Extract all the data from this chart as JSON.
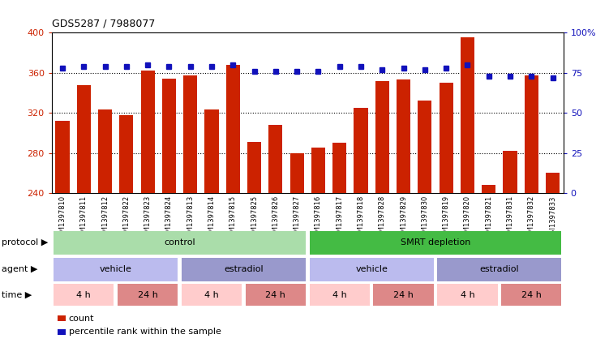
{
  "title": "GDS5287 / 7988077",
  "samples": [
    "GSM1397810",
    "GSM1397811",
    "GSM1397812",
    "GSM1397822",
    "GSM1397823",
    "GSM1397824",
    "GSM1397813",
    "GSM1397814",
    "GSM1397815",
    "GSM1397825",
    "GSM1397826",
    "GSM1397827",
    "GSM1397816",
    "GSM1397817",
    "GSM1397818",
    "GSM1397828",
    "GSM1397829",
    "GSM1397830",
    "GSM1397819",
    "GSM1397820",
    "GSM1397821",
    "GSM1397831",
    "GSM1397832",
    "GSM1397833"
  ],
  "bar_values": [
    312,
    348,
    323,
    318,
    362,
    354,
    357,
    323,
    368,
    291,
    308,
    280,
    285,
    290,
    325,
    352,
    353,
    332,
    350,
    395,
    248,
    282,
    357,
    260
  ],
  "dot_values": [
    78,
    79,
    79,
    79,
    80,
    79,
    79,
    79,
    80,
    76,
    76,
    76,
    76,
    79,
    79,
    77,
    78,
    77,
    78,
    80,
    73,
    73,
    73,
    72
  ],
  "bar_color": "#cc2200",
  "dot_color": "#1111bb",
  "ylim_left": [
    240,
    400
  ],
  "ylim_right": [
    0,
    100
  ],
  "yticks_left": [
    240,
    280,
    320,
    360,
    400
  ],
  "yticks_right": [
    0,
    25,
    50,
    75,
    100
  ],
  "ytick_labels_right": [
    "0",
    "25",
    "50",
    "75",
    "100%"
  ],
  "grid_values": [
    280,
    320,
    360
  ],
  "protocol_spans": [
    {
      "label": "control",
      "start": 0,
      "end": 12,
      "color": "#aaddaa"
    },
    {
      "label": "SMRT depletion",
      "start": 12,
      "end": 24,
      "color": "#44bb44"
    }
  ],
  "agent_spans": [
    {
      "label": "vehicle",
      "start": 0,
      "end": 6,
      "color": "#bbbbee"
    },
    {
      "label": "estradiol",
      "start": 6,
      "end": 12,
      "color": "#9999cc"
    },
    {
      "label": "vehicle",
      "start": 12,
      "end": 18,
      "color": "#bbbbee"
    },
    {
      "label": "estradiol",
      "start": 18,
      "end": 24,
      "color": "#9999cc"
    }
  ],
  "time_spans": [
    {
      "label": "4 h",
      "start": 0,
      "end": 3,
      "color": "#ffcccc"
    },
    {
      "label": "24 h",
      "start": 3,
      "end": 6,
      "color": "#dd8888"
    },
    {
      "label": "4 h",
      "start": 6,
      "end": 9,
      "color": "#ffcccc"
    },
    {
      "label": "24 h",
      "start": 9,
      "end": 12,
      "color": "#dd8888"
    },
    {
      "label": "4 h",
      "start": 12,
      "end": 15,
      "color": "#ffcccc"
    },
    {
      "label": "24 h",
      "start": 15,
      "end": 18,
      "color": "#dd8888"
    },
    {
      "label": "4 h",
      "start": 18,
      "end": 21,
      "color": "#ffcccc"
    },
    {
      "label": "24 h",
      "start": 21,
      "end": 24,
      "color": "#dd8888"
    }
  ],
  "legend_items": [
    {
      "label": "count",
      "color": "#cc2200"
    },
    {
      "label": "percentile rank within the sample",
      "color": "#1111bb"
    }
  ],
  "bg_color": "#ffffff",
  "plot_bg_color": "#ffffff",
  "xtick_bg_color": "#dddddd"
}
